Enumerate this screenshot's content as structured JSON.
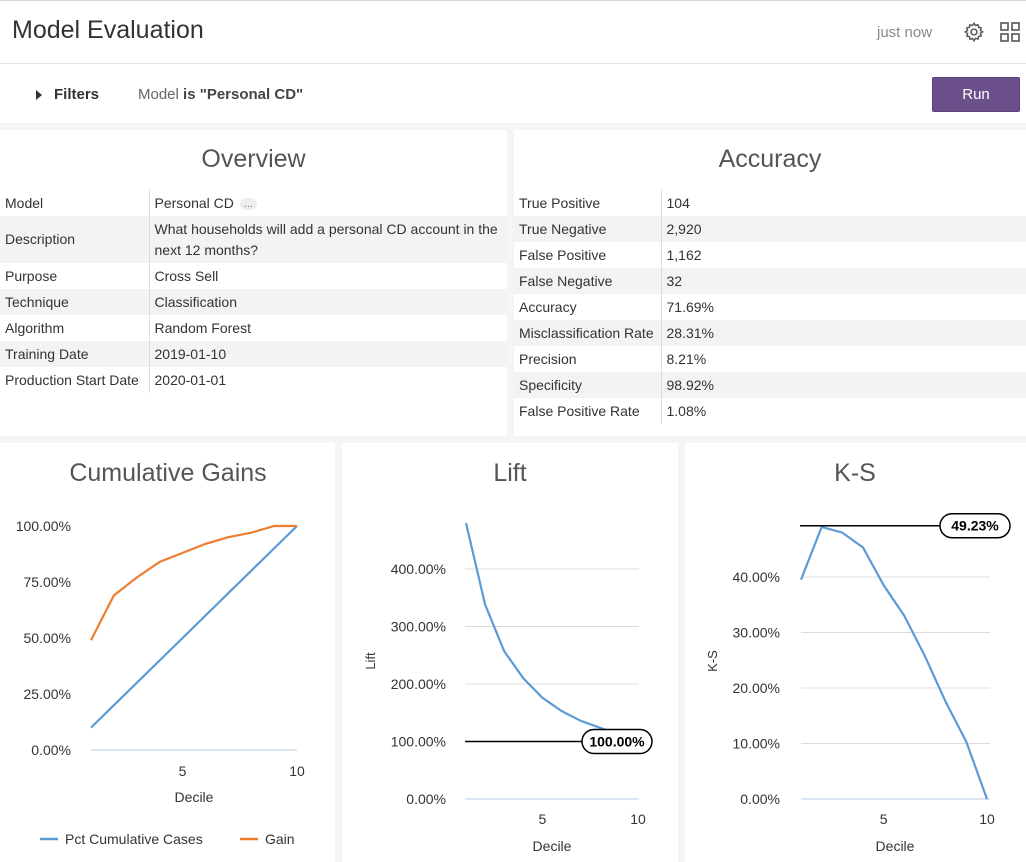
{
  "header": {
    "title": "Model Evaluation",
    "updated": "just now",
    "settings_icon": "gear-icon",
    "layout_icon": "grid-icon"
  },
  "filters": {
    "toggle_label": "Filters",
    "field": "Model",
    "operator": "is",
    "value": "\"Personal CD\"",
    "run_label": "Run"
  },
  "overview": {
    "title": "Overview",
    "rows": [
      {
        "key": "Model",
        "value": "Personal CD"
      },
      {
        "key": "Description",
        "value": "What households will add a personal CD account in the next 12 months?"
      },
      {
        "key": "Purpose",
        "value": "Cross Sell"
      },
      {
        "key": "Technique",
        "value": "Classification"
      },
      {
        "key": "Algorithm",
        "value": "Random Forest"
      },
      {
        "key": "Training Date",
        "value": "2019-01-10"
      },
      {
        "key": "Production Start Date",
        "value": "2020-01-01"
      }
    ],
    "more_label": "..."
  },
  "accuracy": {
    "title": "Accuracy",
    "rows": [
      {
        "key": "True Positive",
        "value": "104"
      },
      {
        "key": "True Negative",
        "value": "2,920"
      },
      {
        "key": "False Positive",
        "value": "1,162"
      },
      {
        "key": "False Negative",
        "value": "32"
      },
      {
        "key": "Accuracy",
        "value": "71.69%"
      },
      {
        "key": "Misclassification Rate",
        "value": "28.31%"
      },
      {
        "key": "Precision",
        "value": "8.21%"
      },
      {
        "key": "Specificity",
        "value": "98.92%"
      },
      {
        "key": "False Positive Rate",
        "value": "1.08%"
      }
    ]
  },
  "colors": {
    "run_button": "#6b4f8a",
    "series_blue": "#5b9bd5",
    "series_orange": "#ed7d31",
    "reference_line": "#000000"
  },
  "chart_data": [
    {
      "type": "line",
      "title": "Cumulative Gains",
      "xlabel": "Decile",
      "ylabel": "",
      "x": [
        1,
        2,
        3,
        4,
        5,
        6,
        7,
        8,
        9,
        10
      ],
      "xticks": [
        "5",
        "10"
      ],
      "yticks": [
        "0.00%",
        "25.00%",
        "50.00%",
        "75.00%",
        "100.00%"
      ],
      "ylim": [
        0,
        100
      ],
      "series": [
        {
          "name": "Pct Cumulative Cases",
          "values": [
            10,
            20,
            30,
            40,
            50,
            60,
            70,
            80,
            90,
            100
          ]
        },
        {
          "name": "Gain",
          "values": [
            49,
            69,
            77,
            84,
            88,
            92,
            95,
            97,
            100,
            100
          ]
        }
      ],
      "legend_position": "bottom"
    },
    {
      "type": "line",
      "title": "Lift",
      "xlabel": "Decile",
      "ylabel": "Lift",
      "x": [
        1,
        2,
        3,
        4,
        5,
        6,
        7,
        8,
        9,
        10
      ],
      "xticks": [
        "5",
        "10"
      ],
      "yticks": [
        "0.00%",
        "100.00%",
        "200.00%",
        "300.00%",
        "400.00%"
      ],
      "ylim": [
        0,
        480
      ],
      "series": [
        {
          "name": "Lift",
          "values": [
            485,
            338,
            257,
            210,
            176,
            153,
            136,
            124,
            111,
            100
          ]
        }
      ],
      "reference": {
        "value": 100,
        "label": "100.00%"
      }
    },
    {
      "type": "line",
      "title": "K-S",
      "xlabel": "Decile",
      "ylabel": "K-S",
      "x": [
        1,
        2,
        3,
        4,
        5,
        6,
        7,
        8,
        9,
        10
      ],
      "xticks": [
        "5",
        "10"
      ],
      "yticks": [
        "0.00%",
        "10.00%",
        "20.00%",
        "30.00%",
        "40.00%"
      ],
      "ylim": [
        0,
        49
      ],
      "series": [
        {
          "name": "K-S",
          "values": [
            39.5,
            49.2,
            48,
            45.3,
            38.5,
            33,
            25.7,
            17.5,
            10.3,
            0
          ]
        }
      ],
      "reference": {
        "value": 49.23,
        "label": "49.23%"
      }
    }
  ]
}
